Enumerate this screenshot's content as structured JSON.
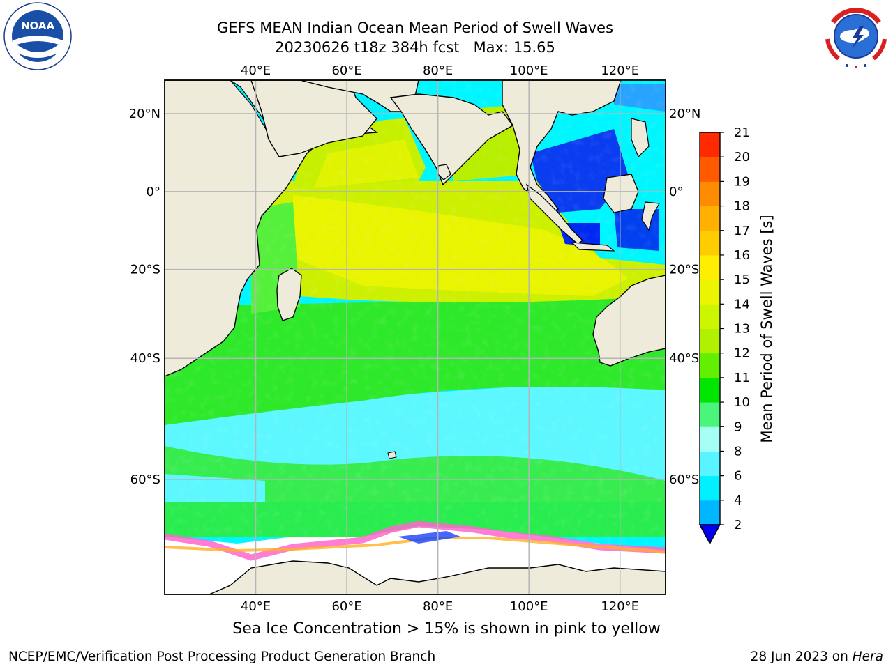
{
  "title": {
    "line1": "GEFS MEAN Indian Ocean Mean Period of Swell Waves",
    "run": "20230626 t18z 384h fcst",
    "max": "Max: 15.65"
  },
  "map": {
    "longitude_labels": [
      "40°E",
      "60°E",
      "80°E",
      "100°E",
      "120°E"
    ],
    "latitude_labels": [
      "20°N",
      "0°",
      "20°S",
      "40°S",
      "60°S"
    ],
    "extent": {
      "lon_min": 20,
      "lon_max": 130,
      "lat_min": -72,
      "lat_max": 28
    },
    "land_color": "#eeebda",
    "ice_fill_color": "#ffffff",
    "gridline_color": "#b5b5b5"
  },
  "colorbar": {
    "label": "Mean Period of Swell Waves [s]",
    "ticks": [
      "2",
      "4",
      "6",
      "8",
      "9",
      "10",
      "11",
      "12",
      "13",
      "14",
      "15",
      "16",
      "17",
      "18",
      "19",
      "20",
      "21"
    ],
    "colors": [
      "#0037ff",
      "#00b7ff",
      "#00f0ff",
      "#58f4ff",
      "#a5fff5",
      "#49f57a",
      "#00e600",
      "#62f000",
      "#b0f000",
      "#ccf500",
      "#ecf500",
      "#ffee00",
      "#ffcc00",
      "#ffb000",
      "#ff8c00",
      "#ff5a00",
      "#ff2a00",
      "#ff0000"
    ],
    "under_color": "#0000ee"
  },
  "caption": "Sea Ice Concentration > 15% is shown in pink to yellow",
  "footer": {
    "left": "NCEP/EMC/Verification Post Processing Product Generation Branch",
    "date": "28 Jun 2023 on ",
    "machine": "Hera"
  },
  "logos": {
    "noaa_text": "NOAA",
    "nws_icon": "nws-icon",
    "noaa_icon": "noaa-icon"
  }
}
